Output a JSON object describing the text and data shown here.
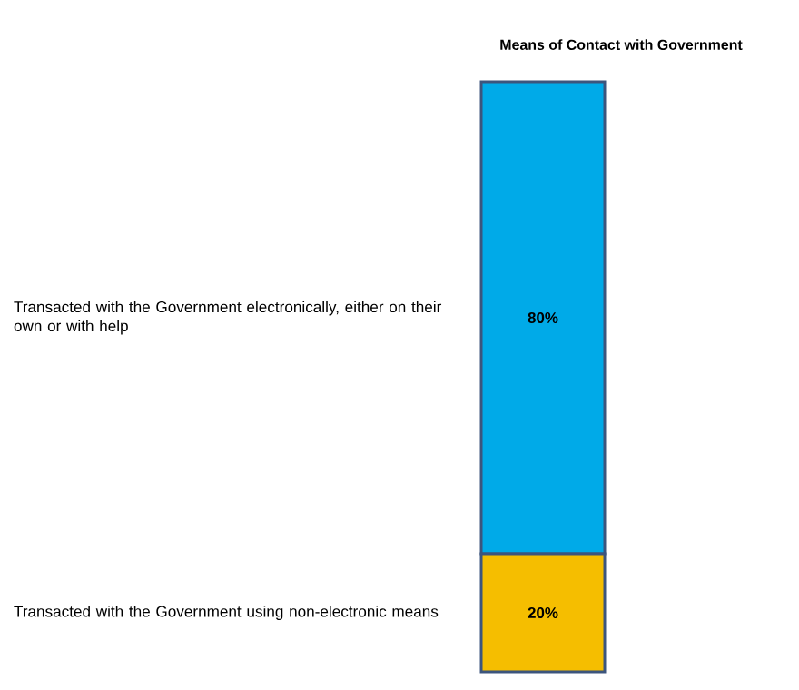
{
  "chart_data": {
    "type": "bar",
    "title": "Means of Contact with Government",
    "categories": [
      null
    ],
    "stacked": true,
    "series": [
      {
        "name": "Transacted with the Government using non-electronic means",
        "color": "#f5be00",
        "values": [
          20
        ],
        "value_labels": [
          "20%"
        ]
      },
      {
        "name": "Transacted with the Government electronically, either on their own or with help",
        "color": "#00aae8",
        "values": [
          80
        ],
        "value_labels": [
          "80%"
        ]
      }
    ]
  }
}
